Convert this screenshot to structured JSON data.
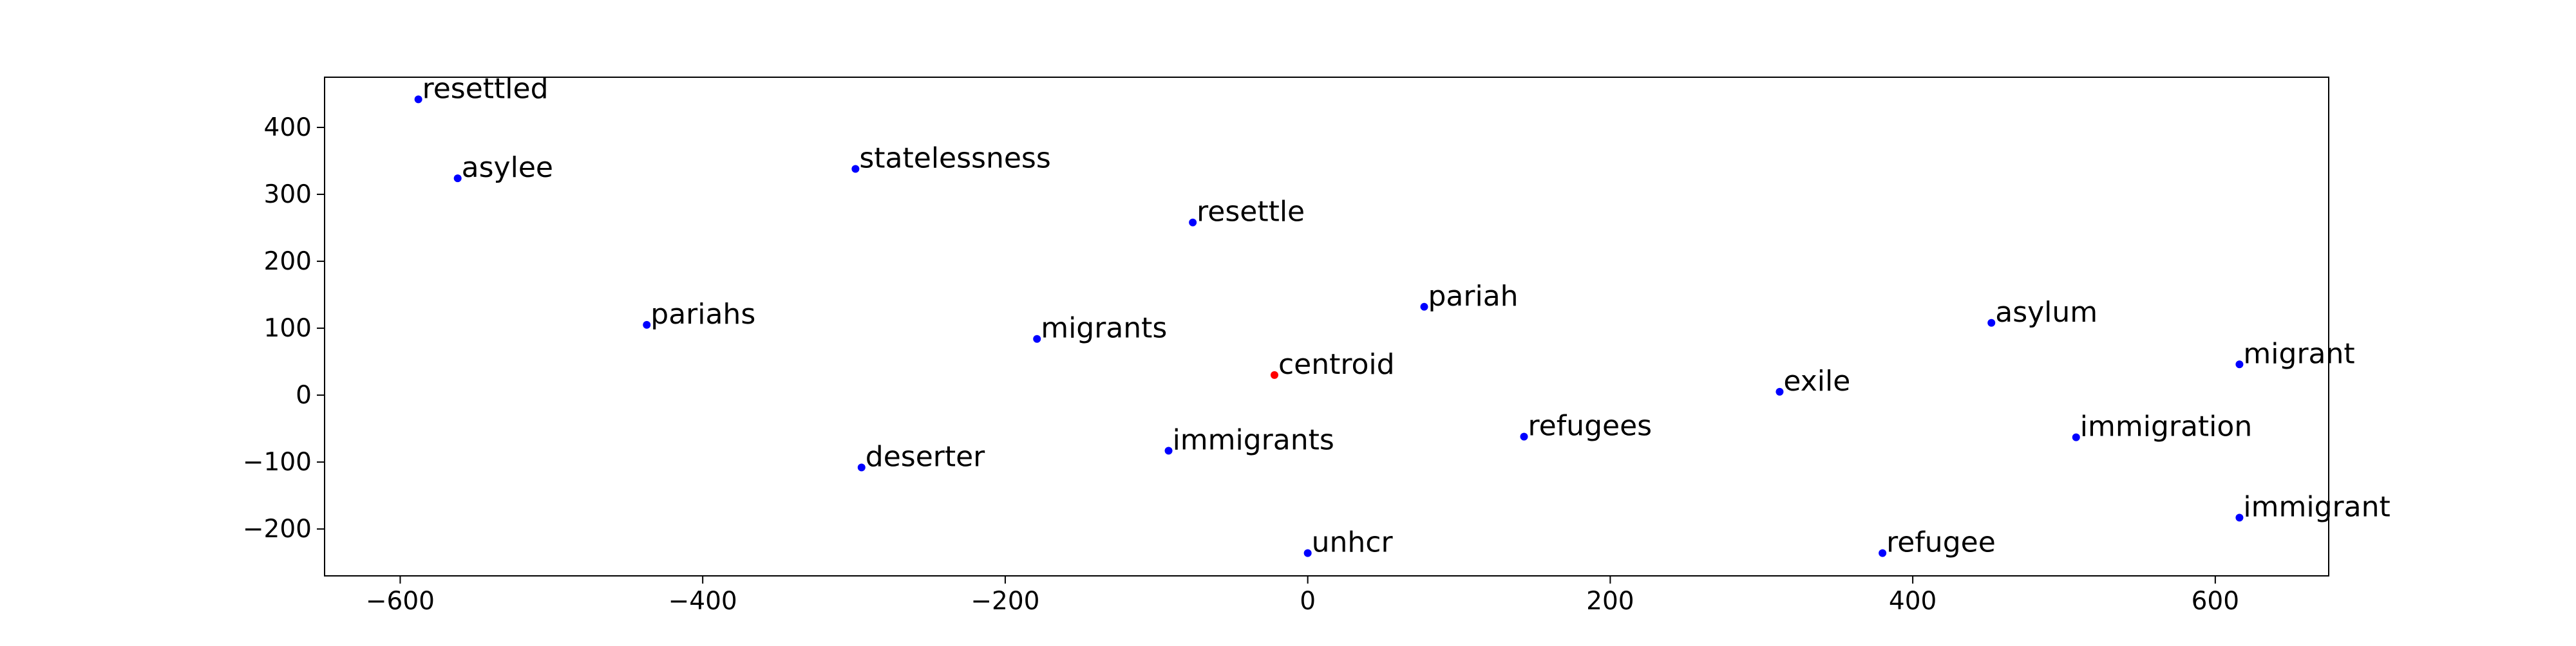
{
  "chart_data": {
    "type": "scatter",
    "title": "",
    "xlabel": "",
    "ylabel": "",
    "xlim": [
      -650,
      675
    ],
    "ylim": [
      -270,
      475
    ],
    "grid": false,
    "xticks": [
      -600,
      -400,
      -200,
      0,
      200,
      400,
      600
    ],
    "yticks": [
      -200,
      -100,
      0,
      100,
      200,
      300,
      400
    ],
    "xtick_labels": [
      "−600",
      "−400",
      "−200",
      "0",
      "200",
      "400",
      "600"
    ],
    "ytick_labels": [
      "−200",
      "−100",
      "0",
      "100",
      "200",
      "300",
      "400"
    ],
    "point_color": "#0000ff",
    "centroid_color": "#ff0000",
    "points": [
      {
        "label": "resettled",
        "x": -588,
        "y": 442
      },
      {
        "label": "asylee",
        "x": -562,
        "y": 324
      },
      {
        "label": "statelessness",
        "x": -299,
        "y": 338
      },
      {
        "label": "resettle",
        "x": -76,
        "y": 258
      },
      {
        "label": "pariahs",
        "x": -437,
        "y": 105
      },
      {
        "label": "migrants",
        "x": -179,
        "y": 84
      },
      {
        "label": "pariah",
        "x": 77,
        "y": 132
      },
      {
        "label": "asylum",
        "x": 452,
        "y": 108
      },
      {
        "label": "migrant",
        "x": 616,
        "y": 46
      },
      {
        "label": "exile",
        "x": 312,
        "y": 5
      },
      {
        "label": "deserter",
        "x": -295,
        "y": -108
      },
      {
        "label": "immigrants",
        "x": -92,
        "y": -83
      },
      {
        "label": "refugees",
        "x": 143,
        "y": -62
      },
      {
        "label": "immigration",
        "x": 508,
        "y": -63
      },
      {
        "label": "immigrant",
        "x": 616,
        "y": -183
      },
      {
        "label": "unhcr",
        "x": 0,
        "y": -236
      },
      {
        "label": "refugee",
        "x": 380,
        "y": -236
      }
    ],
    "centroid": {
      "label": "centroid",
      "x": -22,
      "y": 30
    }
  }
}
